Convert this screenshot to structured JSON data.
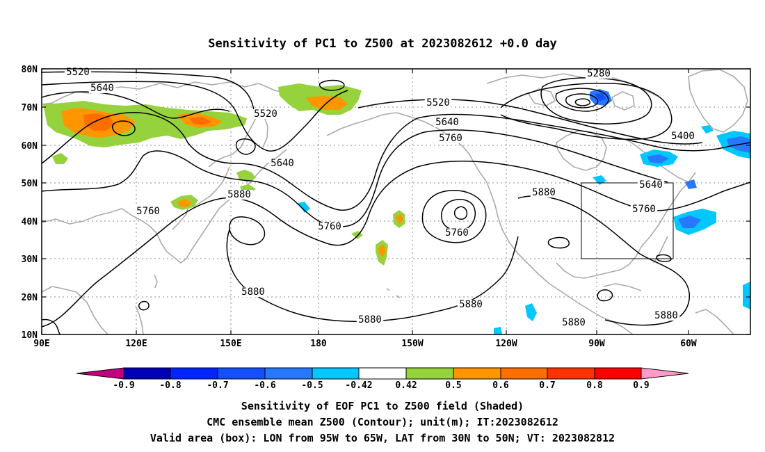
{
  "title": "Sensitivity of PC1 to Z500 at 2023082612 +0.0 day",
  "map": {
    "lon_labels": [
      "90E",
      "120E",
      "150E",
      "180",
      "150W",
      "120W",
      "90W",
      "60W"
    ],
    "lat_labels": [
      "80N",
      "70N",
      "60N",
      "50N",
      "40N",
      "30N",
      "20N",
      "10N"
    ],
    "contour_labels": [
      "5520",
      "5640",
      "5520",
      "5640",
      "5760",
      "5880",
      "5520",
      "5640",
      "5760",
      "5280",
      "5400",
      "5640",
      "5760",
      "5880",
      "5760",
      "5760",
      "5880",
      "5880",
      "5880",
      "5880",
      "5880"
    ],
    "colors": {
      "land": "#aaaaaa",
      "grid": "#888888",
      "contour": "#000000",
      "frame": "#000000"
    }
  },
  "colorbar": {
    "labels": [
      "-0.9",
      "-0.8",
      "-0.7",
      "-0.6",
      "-0.5",
      "-0.42",
      "0.42",
      "0.5",
      "0.6",
      "0.7",
      "0.8",
      "0.9"
    ],
    "colors": [
      "#c0007f",
      "#0000b4",
      "#0025ff",
      "#1450ff",
      "#2878ff",
      "#00c8ff",
      "#ffffff",
      "#96d23c",
      "#ff9600",
      "#ff6e00",
      "#ff3200",
      "#ff0000",
      "#ff9bc8"
    ]
  },
  "captions": [
    "Sensitivity of EOF PC1 to Z500 field (Shaded)",
    "CMC ensemble mean Z500 (Contour); unit(m); IT:2023082612",
    "Valid area (box): LON from 95W to 65W, LAT from 30N to 50N; VT: 2023082812"
  ]
}
